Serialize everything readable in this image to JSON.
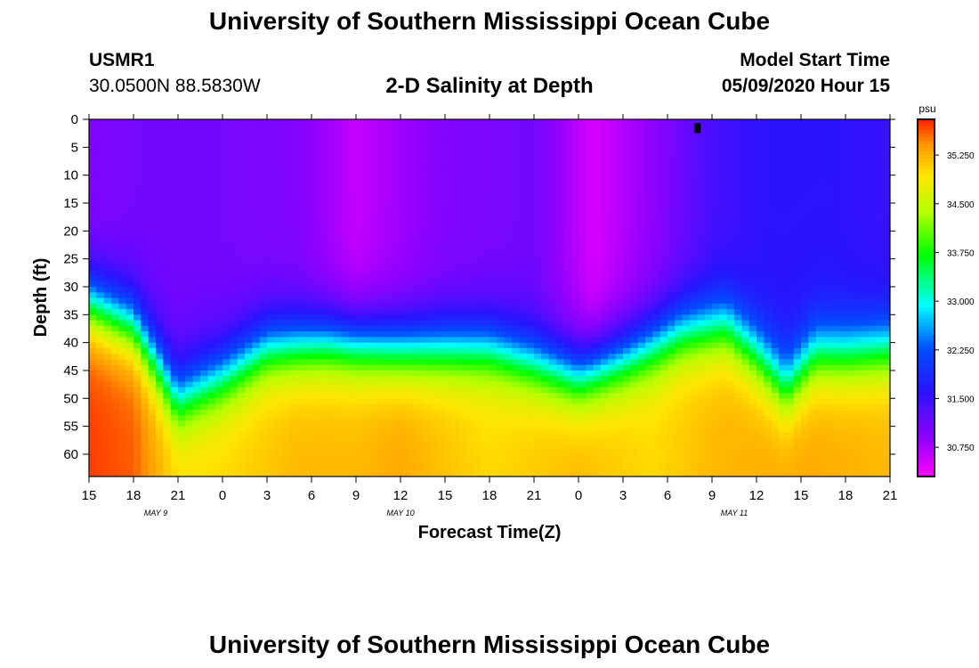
{
  "header": {
    "title": "University of Southern Mississippi Ocean Cube",
    "station_id": "USMR1",
    "station_coords": "30.0500N 88.5830W",
    "chart_title": "2-D Salinity at Depth",
    "model_start_label": "Model Start Time",
    "model_start_value": "05/09/2020 Hour 15"
  },
  "footer": {
    "title": "University of Southern Mississippi Ocean Cube"
  },
  "chart_data": {
    "type": "heatmap",
    "title": "2-D Salinity at Depth",
    "xlabel": "Forecast Time(Z)",
    "ylabel": "Depth (ft)",
    "x_tick_labels": [
      "15",
      "18",
      "21",
      "0",
      "3",
      "6",
      "9",
      "12",
      "15",
      "18",
      "21",
      "0",
      "3",
      "6",
      "9",
      "12",
      "15",
      "18",
      "21"
    ],
    "date_labels": [
      {
        "label": "MAY  9",
        "tick_index": 1.5
      },
      {
        "label": "MAY  10",
        "tick_index": 7
      },
      {
        "label": "MAY  11",
        "tick_index": 14.5
      }
    ],
    "x_range_hours": [
      0,
      54
    ],
    "y_ticks": [
      0,
      5,
      10,
      15,
      20,
      25,
      30,
      35,
      40,
      45,
      50,
      55,
      60
    ],
    "ylim": [
      0,
      64
    ],
    "colorbar": {
      "unit": "psu",
      "range": [
        30.3,
        35.8
      ],
      "tick_labels": [
        "35.250",
        "34.500",
        "33.750",
        "33.000",
        "32.250",
        "31.500",
        "30.750"
      ],
      "tick_values": [
        35.25,
        34.5,
        33.75,
        33.0,
        32.25,
        31.5,
        30.75
      ]
    },
    "halocline_depth_ft": {
      "hours": [
        0,
        3,
        6,
        9,
        12,
        16,
        21,
        27,
        33,
        36,
        40,
        43,
        45,
        47,
        49,
        51,
        54
      ],
      "depth": [
        33,
        37,
        50,
        46,
        41,
        40,
        41,
        41,
        46,
        43,
        38,
        37,
        42,
        48,
        42,
        42,
        41
      ]
    },
    "surface_salinity_psu": {
      "hours": [
        0,
        4,
        8,
        14,
        18,
        24,
        30,
        34,
        38,
        42,
        46,
        50,
        54
      ],
      "value": [
        31.0,
        31.1,
        31.1,
        31.0,
        30.6,
        31.0,
        31.1,
        30.5,
        30.9,
        31.4,
        31.6,
        31.6,
        31.5
      ]
    },
    "bottom_salinity_psu": {
      "hours": [
        0,
        3,
        6,
        9,
        14,
        18,
        21,
        27,
        33,
        38,
        42,
        48,
        54
      ],
      "value": [
        35.7,
        35.6,
        35.0,
        35.0,
        35.2,
        35.2,
        35.3,
        35.0,
        35.2,
        35.0,
        35.2,
        35.3,
        35.2
      ]
    },
    "marker": {
      "hour": 41,
      "depth_ft": 1.5
    }
  }
}
